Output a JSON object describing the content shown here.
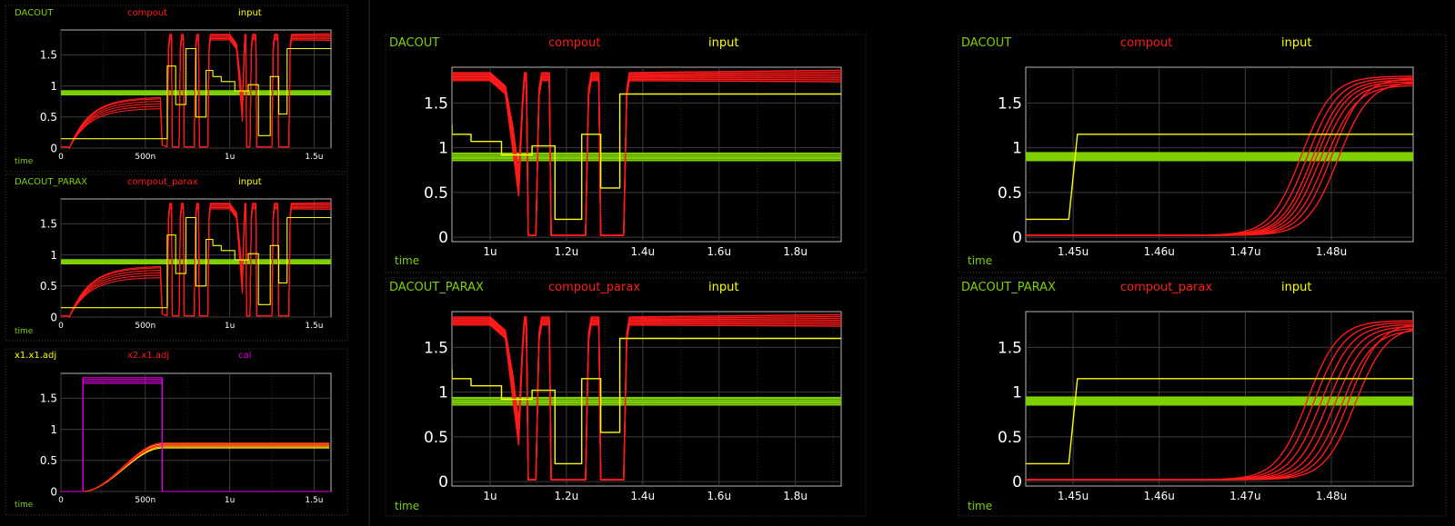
{
  "colors": {
    "background": "#000000",
    "frame": "#3a3a3a",
    "grid": "#3c3c3c",
    "axis": "#b8b8b8",
    "tick_text": "#ffffff",
    "green": "#7fd000",
    "red": "#ff1a1a",
    "yellow": "#ffff00",
    "magenta": "#e000e0"
  },
  "chart_data": [
    {
      "id": "small-1",
      "type": "line",
      "legend": [
        "DACOUT",
        "compout",
        "input"
      ],
      "xlabel": "time",
      "xlim": [
        0,
        1.6
      ],
      "ylim": [
        0,
        1.9
      ],
      "x_ticks": [
        {
          "v": 0,
          "label": "0"
        },
        {
          "v": 0.5,
          "label": "500n"
        },
        {
          "v": 1.0,
          "label": "1u"
        },
        {
          "v": 1.5,
          "label": "1.5u"
        }
      ],
      "y_ticks": [
        {
          "v": 0,
          "label": "0"
        },
        {
          "v": 0.5,
          "label": "0.5"
        },
        {
          "v": 1,
          "label": "1"
        },
        {
          "v": 1.5,
          "label": "1.5"
        }
      ],
      "series": [
        {
          "name": "DACOUT",
          "color": "green",
          "bands": [
            0.86,
            0.88,
            0.9,
            0.92
          ],
          "offsets": []
        },
        {
          "name": "compout",
          "color": "red",
          "kind": "compout",
          "variant": "a",
          "offsets": [
            0,
            0.02,
            -0.02,
            0.04,
            -0.04,
            0.05
          ]
        },
        {
          "name": "input",
          "color": "yellow",
          "kind": "input_full",
          "offsets": []
        }
      ]
    },
    {
      "id": "small-2",
      "type": "line",
      "legend": [
        "DACOUT_PARAX",
        "compout_parax",
        "input"
      ],
      "xlabel": "time",
      "xlim": [
        0,
        1.6
      ],
      "ylim": [
        0,
        1.9
      ],
      "x_ticks": [
        {
          "v": 0,
          "label": "0"
        },
        {
          "v": 0.5,
          "label": "500n"
        },
        {
          "v": 1.0,
          "label": "1u"
        },
        {
          "v": 1.5,
          "label": "1.5u"
        }
      ],
      "y_ticks": [
        {
          "v": 0,
          "label": "0"
        },
        {
          "v": 0.5,
          "label": "0.5"
        },
        {
          "v": 1,
          "label": "1"
        },
        {
          "v": 1.5,
          "label": "1.5"
        }
      ],
      "series": [
        {
          "name": "DACOUT_PARAX",
          "color": "green",
          "bands": [
            0.86,
            0.88,
            0.9,
            0.92
          ],
          "offsets": []
        },
        {
          "name": "compout_parax",
          "color": "red",
          "kind": "compout",
          "variant": "b",
          "offsets": [
            0,
            0.02,
            -0.02,
            0.04,
            -0.04,
            0.05
          ]
        },
        {
          "name": "input",
          "color": "yellow",
          "kind": "input_full",
          "offsets": []
        }
      ]
    },
    {
      "id": "small-3",
      "type": "line",
      "legend": [
        "x1.x1.adj",
        "x2.x1.adj",
        "cal"
      ],
      "xlabel": "time",
      "xlim": [
        0,
        1.6
      ],
      "ylim": [
        0,
        1.9
      ],
      "x_ticks": [
        {
          "v": 0,
          "label": "0"
        },
        {
          "v": 0.5,
          "label": "500n"
        },
        {
          "v": 1.0,
          "label": "1u"
        },
        {
          "v": 1.5,
          "label": "1.5u"
        }
      ],
      "y_ticks": [
        {
          "v": 0,
          "label": "0"
        },
        {
          "v": 0.5,
          "label": "0.5"
        },
        {
          "v": 1,
          "label": "1"
        },
        {
          "v": 1.5,
          "label": "1.5"
        }
      ],
      "series": [
        {
          "name": "x1.x1.adj",
          "color": "yellow",
          "kind": "adj",
          "final": [
            0.76,
            0.74,
            0.72,
            0.7
          ],
          "offsets": []
        },
        {
          "name": "x2.x1.adj",
          "color": "red",
          "kind": "adj",
          "final": [
            0.78,
            0.75,
            0.73
          ],
          "offsets": []
        },
        {
          "name": "cal",
          "color": "magenta",
          "kind": "cal",
          "levels": [
            1.74,
            1.77,
            1.8,
            1.83
          ],
          "offsets": []
        }
      ]
    },
    {
      "id": "mid-1",
      "type": "line",
      "legend": [
        "DACOUT",
        "compout",
        "input"
      ],
      "xlabel": "time",
      "xlim": [
        0.9,
        1.92
      ],
      "ylim": [
        -0.05,
        1.9
      ],
      "x_ticks": [
        {
          "v": 1.0,
          "label": "1u"
        },
        {
          "v": 1.2,
          "label": "1.2u"
        },
        {
          "v": 1.4,
          "label": "1.4u"
        },
        {
          "v": 1.6,
          "label": "1.6u"
        },
        {
          "v": 1.8,
          "label": "1.8u"
        }
      ],
      "y_ticks": [
        {
          "v": 0,
          "label": "0"
        },
        {
          "v": 0.5,
          "label": "0.5"
        },
        {
          "v": 1,
          "label": "1"
        },
        {
          "v": 1.5,
          "label": "1.5"
        }
      ],
      "series": [
        {
          "name": "DACOUT",
          "color": "green",
          "bands": [
            0.86,
            0.885,
            0.91,
            0.935
          ],
          "offsets": []
        },
        {
          "name": "compout",
          "color": "red",
          "kind": "compout",
          "variant": "a",
          "offsets": [
            0,
            0.015,
            -0.015,
            0.03,
            -0.03,
            0.045,
            0.06
          ]
        },
        {
          "name": "input",
          "color": "yellow",
          "kind": "input_full",
          "offsets": []
        }
      ]
    },
    {
      "id": "mid-2",
      "type": "line",
      "legend": [
        "DACOUT_PARAX",
        "compout_parax",
        "input"
      ],
      "xlabel": "time",
      "xlim": [
        0.9,
        1.92
      ],
      "ylim": [
        -0.05,
        1.9
      ],
      "x_ticks": [
        {
          "v": 1.0,
          "label": "1u"
        },
        {
          "v": 1.2,
          "label": "1.2u"
        },
        {
          "v": 1.4,
          "label": "1.4u"
        },
        {
          "v": 1.6,
          "label": "1.6u"
        },
        {
          "v": 1.8,
          "label": "1.8u"
        }
      ],
      "y_ticks": [
        {
          "v": 0,
          "label": "0"
        },
        {
          "v": 0.5,
          "label": "0.5"
        },
        {
          "v": 1,
          "label": "1"
        },
        {
          "v": 1.5,
          "label": "1.5"
        }
      ],
      "series": [
        {
          "name": "DACOUT_PARAX",
          "color": "green",
          "bands": [
            0.86,
            0.885,
            0.91,
            0.935
          ],
          "offsets": []
        },
        {
          "name": "compout_parax",
          "color": "red",
          "kind": "compout",
          "variant": "b",
          "offsets": [
            0,
            0.015,
            -0.015,
            0.03,
            -0.03,
            0.045,
            0.06
          ]
        },
        {
          "name": "input",
          "color": "yellow",
          "kind": "input_full",
          "offsets": []
        }
      ]
    },
    {
      "id": "right-1",
      "type": "line",
      "legend": [
        "DACOUT",
        "compout",
        "input"
      ],
      "xlabel": "time",
      "xlim": [
        1.4445,
        1.4895
      ],
      "ylim": [
        -0.05,
        1.9
      ],
      "x_ticks": [
        {
          "v": 1.45,
          "label": "1.45u"
        },
        {
          "v": 1.46,
          "label": "1.46u"
        },
        {
          "v": 1.47,
          "label": "1.47u"
        },
        {
          "v": 1.48,
          "label": "1.48u"
        }
      ],
      "y_ticks": [
        {
          "v": 0,
          "label": "0"
        },
        {
          "v": 0.5,
          "label": "0.5"
        },
        {
          "v": 1,
          "label": "1"
        },
        {
          "v": 1.5,
          "label": "1.5"
        }
      ],
      "series": [
        {
          "name": "DACOUT",
          "color": "green",
          "bands": [
            0.86,
            0.88,
            0.9,
            0.92,
            0.94
          ],
          "offsets": []
        },
        {
          "name": "compout",
          "color": "red",
          "kind": "zoomrise",
          "centers": [
            1.4765,
            1.4772,
            1.4778,
            1.4782,
            1.4787,
            1.4793,
            1.48,
            1.4808
          ],
          "finals": [
            1.8,
            1.78,
            1.76,
            1.74,
            1.72,
            1.7,
            1.78,
            1.74
          ],
          "offsets": []
        },
        {
          "name": "input",
          "color": "yellow",
          "kind": "input_zoom",
          "offsets": []
        }
      ]
    },
    {
      "id": "right-2",
      "type": "line",
      "legend": [
        "DACOUT_PARAX",
        "compout_parax",
        "input"
      ],
      "xlabel": "time",
      "xlim": [
        1.4445,
        1.4895
      ],
      "ylim": [
        -0.05,
        1.9
      ],
      "x_ticks": [
        {
          "v": 1.45,
          "label": "1.45u"
        },
        {
          "v": 1.46,
          "label": "1.46u"
        },
        {
          "v": 1.47,
          "label": "1.47u"
        },
        {
          "v": 1.48,
          "label": "1.48u"
        }
      ],
      "y_ticks": [
        {
          "v": 0,
          "label": "0"
        },
        {
          "v": 0.5,
          "label": "0.5"
        },
        {
          "v": 1,
          "label": "1"
        },
        {
          "v": 1.5,
          "label": "1.5"
        }
      ],
      "series": [
        {
          "name": "DACOUT_PARAX",
          "color": "green",
          "bands": [
            0.86,
            0.88,
            0.9,
            0.92,
            0.94
          ],
          "offsets": []
        },
        {
          "name": "compout_parax",
          "color": "red",
          "kind": "zoomrise",
          "centers": [
            1.4772,
            1.478,
            1.4788,
            1.4796,
            1.4804,
            1.4812,
            1.482,
            1.4828
          ],
          "finals": [
            1.8,
            1.78,
            1.76,
            1.74,
            1.72,
            1.7,
            1.78,
            1.74
          ],
          "offsets": []
        },
        {
          "name": "input",
          "color": "yellow",
          "kind": "input_zoom",
          "offsets": []
        }
      ]
    }
  ]
}
